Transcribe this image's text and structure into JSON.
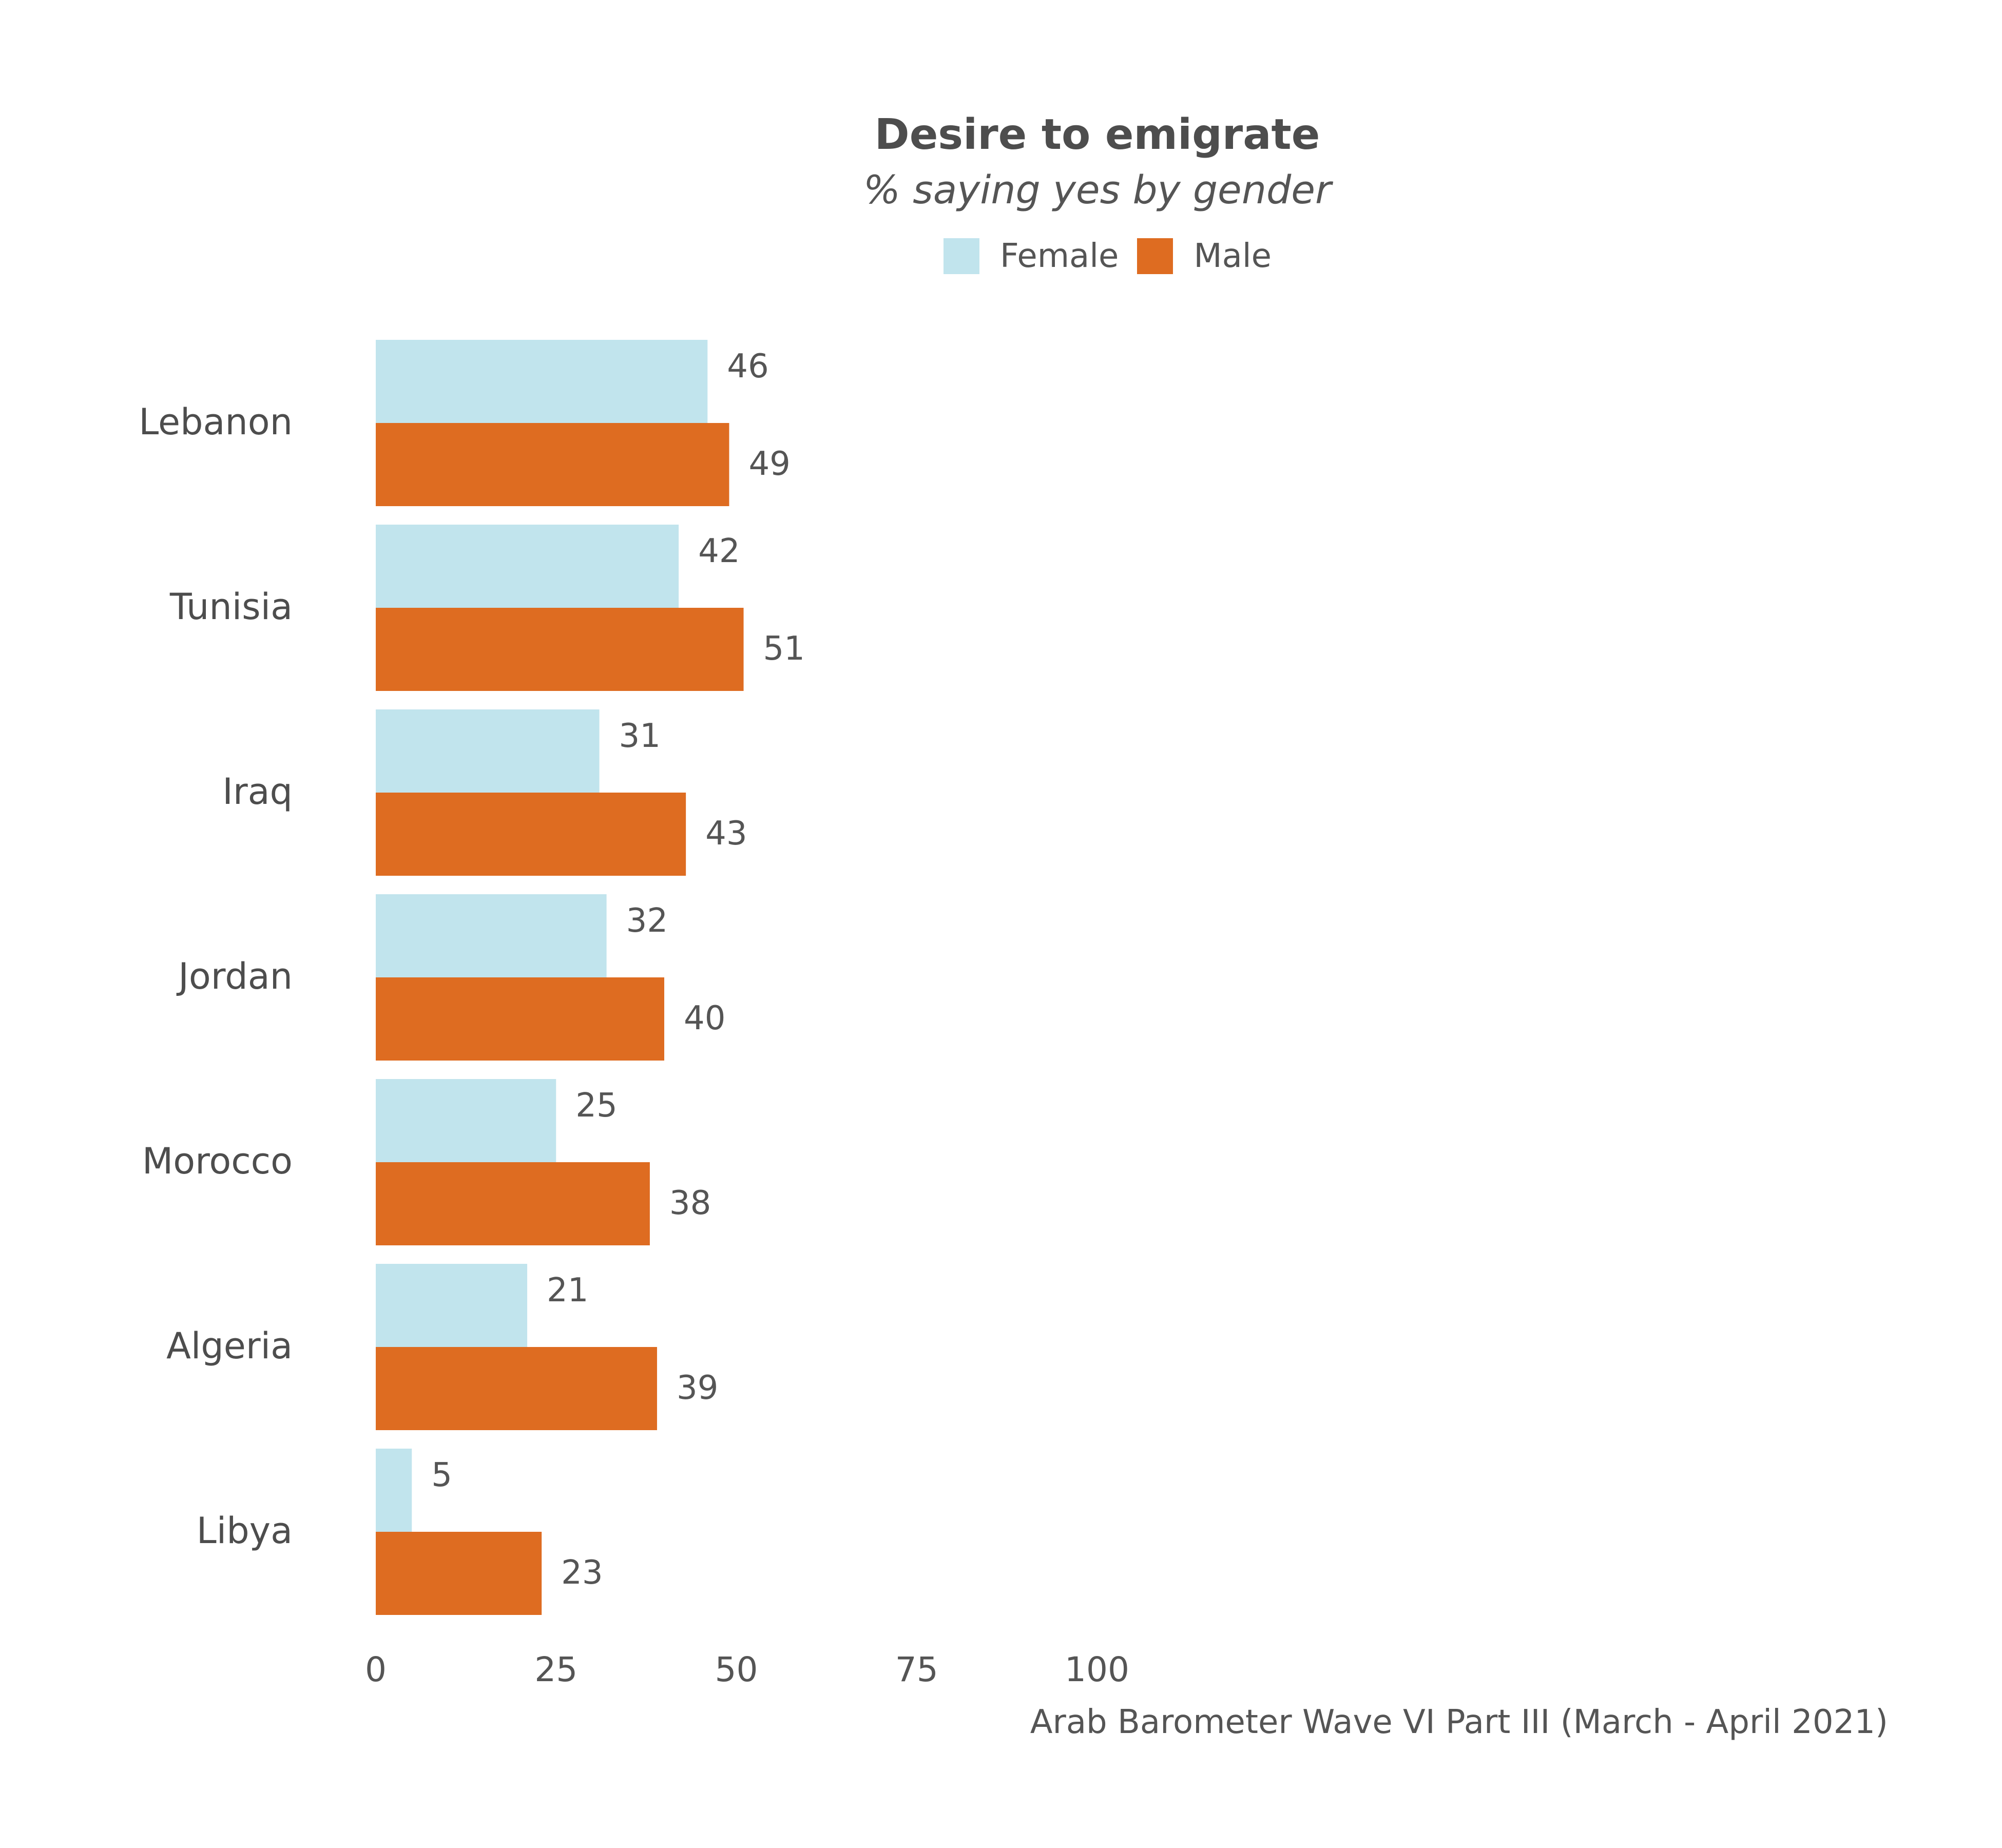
{
  "chart_data": {
    "type": "bar",
    "orientation": "horizontal",
    "title": "Desire to emigrate",
    "subtitle": "% saying yes by gender",
    "categories": [
      "Lebanon",
      "Tunisia",
      "Iraq",
      "Jordan",
      "Morocco",
      "Algeria",
      "Libya"
    ],
    "series": [
      {
        "name": "Female",
        "color": "#c1e4ed",
        "values": [
          46,
          42,
          31,
          32,
          25,
          21,
          5
        ]
      },
      {
        "name": "Male",
        "color": "#de6c21",
        "values": [
          49,
          51,
          43,
          40,
          38,
          39,
          23
        ]
      }
    ],
    "xlim": [
      0,
      100
    ],
    "xticks": [
      "0",
      "25",
      "50",
      "75",
      "100"
    ],
    "legend_position": "top",
    "grid": false,
    "data_labels": true,
    "source": "Arab Barometer Wave VI Part III (March - April 2021)"
  }
}
